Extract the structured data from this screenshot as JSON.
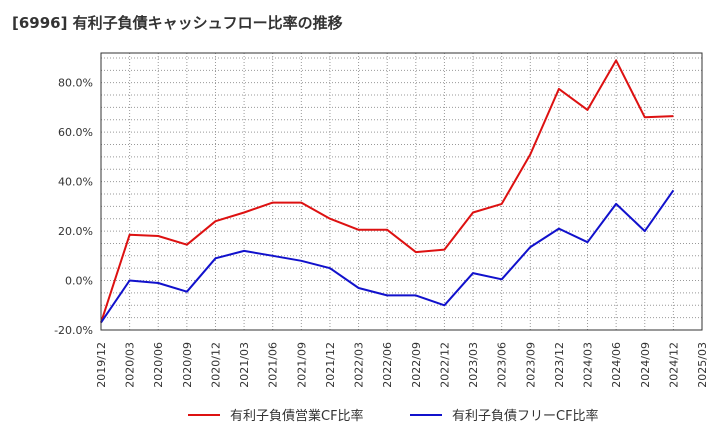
{
  "chart_data": {
    "type": "line",
    "title": "[6996]  有利子負債キャッシュフロー比率の推移",
    "x": [
      "2019/12",
      "2020/03",
      "2020/06",
      "2020/09",
      "2020/12",
      "2021/03",
      "2021/06",
      "2021/09",
      "2021/12",
      "2022/03",
      "2022/06",
      "2022/09",
      "2022/12",
      "2023/03",
      "2023/06",
      "2023/09",
      "2023/12",
      "2024/03",
      "2024/06",
      "2024/09",
      "2024/12"
    ],
    "x_tick_labels": [
      "2019/12",
      "2020/03",
      "2020/06",
      "2020/09",
      "2020/12",
      "2021/03",
      "2021/06",
      "2021/09",
      "2021/12",
      "2022/03",
      "2022/06",
      "2022/09",
      "2022/12",
      "2023/03",
      "2023/06",
      "2023/09",
      "2023/12",
      "2024/03",
      "2024/06",
      "2024/09",
      "2024/12",
      "2025/03"
    ],
    "ylim": [
      -20,
      92
    ],
    "y_ticks": [
      -20,
      0,
      20,
      40,
      60,
      80
    ],
    "y_tick_labels": [
      "-20.0%",
      "0.0%",
      "20.0%",
      "40.0%",
      "60.0%",
      "80.0%"
    ],
    "grid": true,
    "legend_position": "bottom",
    "series": [
      {
        "name": "有利子負債営業CF比率",
        "color": "#dd1111",
        "values": [
          -17.0,
          18.5,
          18.0,
          14.5,
          24.0,
          27.5,
          31.5,
          31.5,
          25.0,
          20.5,
          20.5,
          11.5,
          12.5,
          27.5,
          31.0,
          51.0,
          77.5,
          69.0,
          89.0,
          66.0,
          66.5
        ]
      },
      {
        "name": "有利子負債フリーCF比率",
        "color": "#1111cc",
        "values": [
          -17.0,
          0.0,
          -1.0,
          -4.5,
          9.0,
          12.0,
          10.0,
          8.0,
          5.0,
          -3.0,
          -6.0,
          -6.0,
          -10.0,
          3.0,
          0.5,
          13.5,
          21.0,
          15.5,
          31.0,
          20.0,
          36.5
        ]
      }
    ]
  }
}
